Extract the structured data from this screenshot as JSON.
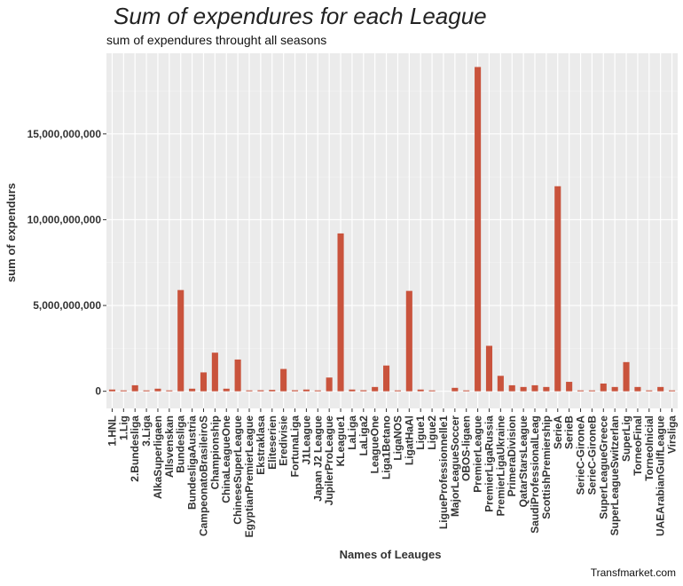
{
  "chart_data": {
    "type": "bar",
    "title": "Sum of expendures for each League",
    "subtitle": "sum of expendures throught all seasons",
    "xlabel": "Names of Leauges",
    "ylabel": "sum of expendurs",
    "caption": "Transfmarket.com",
    "bar_color": "#c9533c",
    "panel_color": "#ebebeb",
    "grid": true,
    "ylim": [
      -1000000000,
      19700000000
    ],
    "yticks": [
      0,
      5000000000,
      10000000000,
      15000000000
    ],
    "ytick_labels": [
      "0",
      "5,000,000,000",
      "10,000,000,000",
      "15,000,000,000"
    ],
    "categories": [
      "1.HNL",
      "1.Lig",
      "2.Bundesliga",
      "3.Liga",
      "AlkaSuperligaen",
      "Allsvenskan",
      "Bundesliga",
      "BundesligaAustria",
      "CampeonatoBrasileiroS",
      "Championship",
      "ChinaLeagueOne",
      "ChineseSuperLeague",
      "EgyptianPremierLeague",
      "Ekstraklasa",
      "Eliteserien",
      "Eredivisie",
      "FortunaLiga",
      "J1League",
      "Japan J2 League",
      "JupilerProLeague",
      "KLeague1",
      "LaLiga",
      "LaLiga2",
      "LeagueOne",
      "Liga1Betano",
      "LigaNOS",
      "LigatHaAl",
      "Ligue1",
      "Ligue2",
      "LigueProfessionnelle1",
      "MajorLeagueSoccer",
      "OBOS-ligaen",
      "PremierLeague",
      "PremierLigaRussia",
      "PremierLigaUkraine",
      "PrimeraDivision",
      "QatarStarsLeague",
      "SaudiProfessionalLeag",
      "ScottishPremiership",
      "SerieA",
      "SerieB",
      "SerieC-GironeA",
      "SerieC-GironeB",
      "SuperLeagueGreece",
      "SuperLeagueSwitzerlan",
      "SuperLig",
      "TorneoFinal",
      "TorneoInicial",
      "UAEArabianGulfLeague",
      "Virsliga"
    ],
    "values": [
      100000000,
      30000000,
      350000000,
      20000000,
      150000000,
      10000000,
      5900000000,
      150000000,
      1100000000,
      2250000000,
      150000000,
      1850000000,
      50000000,
      60000000,
      80000000,
      1300000000,
      60000000,
      100000000,
      10000000,
      800000000,
      9200000000,
      100000000,
      60000000,
      250000000,
      1500000000,
      50000000,
      5850000000,
      100000000,
      10000000,
      0,
      200000000,
      10000000,
      18900000000,
      2650000000,
      900000000,
      350000000,
      250000000,
      350000000,
      250000000,
      11950000000,
      550000000,
      10000000,
      10000000,
      450000000,
      250000000,
      1700000000,
      250000000,
      50000000,
      250000000,
      10000000
    ]
  }
}
